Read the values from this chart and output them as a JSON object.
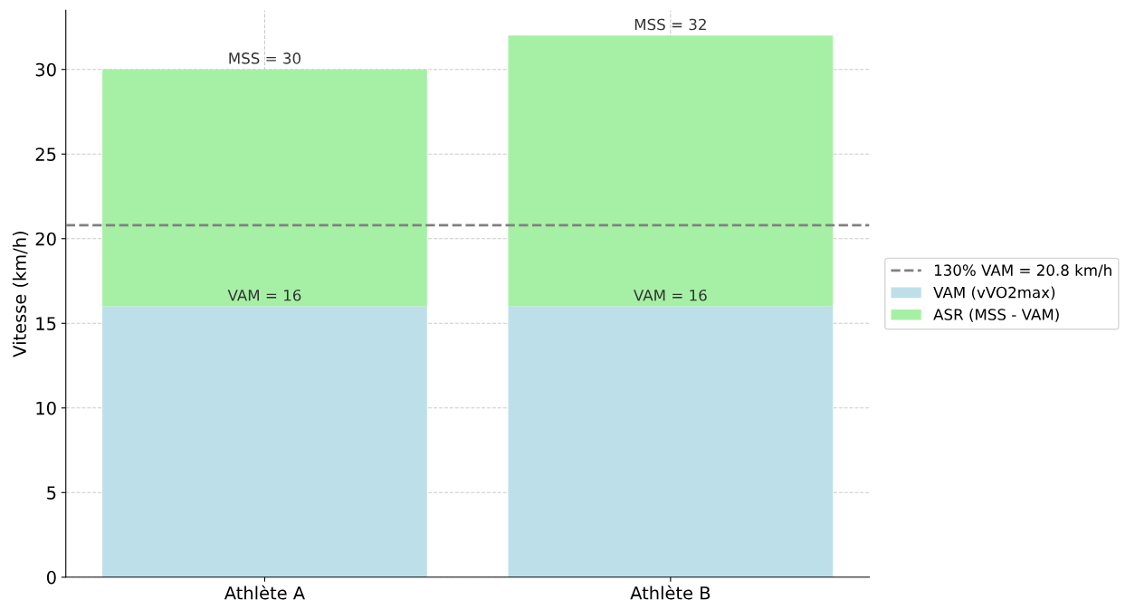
{
  "chart_data": {
    "type": "bar",
    "ylabel": "Vitesse (km/h)",
    "categories": [
      "Athlète A",
      "Athlète B"
    ],
    "stacked": true,
    "series": [
      {
        "name": "VAM (vVO2max)",
        "color": "#bddfe9",
        "values": [
          16,
          16
        ]
      },
      {
        "name": "ASR (MSS - VAM)",
        "color": "#a6f0a6",
        "values": [
          14,
          16
        ]
      }
    ],
    "ylim": [
      0,
      33.5
    ],
    "yticks": [
      0,
      5,
      10,
      15,
      20,
      25,
      30
    ],
    "ref_lines": [
      {
        "axis": "y",
        "value": 20.8,
        "label": "130% VAM = 20.8 km/h",
        "color": "#808080",
        "line_style": "dashed"
      }
    ],
    "annotations": [
      {
        "text": "VAM = 16",
        "x": "Athlète A",
        "y": 16
      },
      {
        "text": "VAM = 16",
        "x": "Athlète B",
        "y": 16
      },
      {
        "text": "MSS = 30",
        "x": "Athlète A",
        "y": 30
      },
      {
        "text": "MSS = 32",
        "x": "Athlète B",
        "y": 32
      }
    ],
    "grid": true,
    "legend": "right"
  }
}
